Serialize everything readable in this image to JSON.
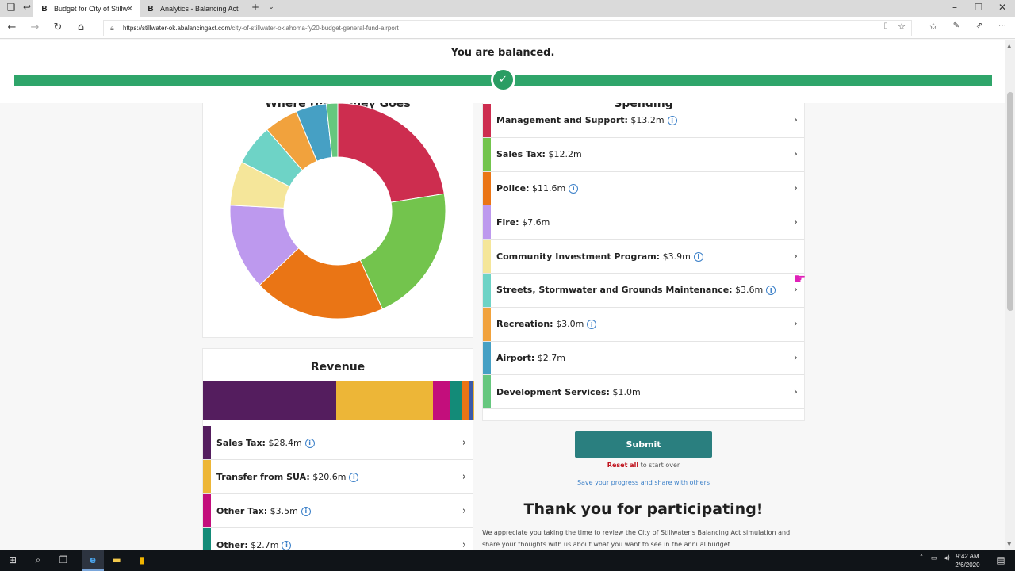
{
  "browser": {
    "tabs": [
      {
        "title": "Budget for City of Stillw",
        "favicon": "B"
      },
      {
        "title": "Analytics - Balancing Act",
        "favicon": "B"
      }
    ],
    "url_domain": "https://stillwater-ok.abalancingact.com",
    "url_path": "/city-of-stillwater-oklahoma-fy20-budget-general-fund-airport"
  },
  "status": {
    "text": "You are balanced.",
    "color": "#2fa56a"
  },
  "donut": {
    "title": "Where the Money Goes"
  },
  "spending": {
    "title": "Spending",
    "items": [
      {
        "name": "Management and Support:",
        "amount": "$13.2m",
        "value": 13.2,
        "color": "#cd2d4f",
        "info": true
      },
      {
        "name": "Sales Tax:",
        "amount": "$12.2m",
        "value": 12.2,
        "color": "#73c44d",
        "info": false
      },
      {
        "name": "Police:",
        "amount": "$11.6m",
        "value": 11.6,
        "color": "#ea7515",
        "info": true
      },
      {
        "name": "Fire:",
        "amount": "$7.6m",
        "value": 7.6,
        "color": "#bd99ee",
        "info": false
      },
      {
        "name": "Community Investment Program:",
        "amount": "$3.9m",
        "value": 3.9,
        "color": "#f5e69a",
        "info": true
      },
      {
        "name": "Streets, Stormwater and Grounds Maintenance:",
        "amount": "$3.6m",
        "value": 3.6,
        "color": "#6ed3c6",
        "info": true
      },
      {
        "name": "Recreation:",
        "amount": "$3.0m",
        "value": 3.0,
        "color": "#f1a23d",
        "info": true
      },
      {
        "name": "Airport:",
        "amount": "$2.7m",
        "value": 2.7,
        "color": "#46a0c4",
        "info": false
      },
      {
        "name": "Development Services:",
        "amount": "$1.0m",
        "value": 1.0,
        "color": "#66c77e",
        "info": false
      }
    ]
  },
  "revenue": {
    "title": "Revenue",
    "bar_segments": [
      {
        "color": "#541d5e",
        "value": 28.4
      },
      {
        "color": "#edb637",
        "value": 20.6
      },
      {
        "color": "#c30e7c",
        "value": 3.5
      },
      {
        "color": "#138b78",
        "value": 2.7
      },
      {
        "color": "#ea7515",
        "value": 1.5
      },
      {
        "color": "#3b5aa8",
        "value": 0.7
      },
      {
        "color": "#edb637",
        "value": 0.4
      }
    ],
    "items": [
      {
        "name": "Sales Tax:",
        "amount": "$28.4m",
        "color": "#541d5e",
        "info": true
      },
      {
        "name": "Transfer from SUA:",
        "amount": "$20.6m",
        "color": "#edb637",
        "info": true
      },
      {
        "name": "Other Tax:",
        "amount": "$3.5m",
        "color": "#c30e7c",
        "info": true
      },
      {
        "name": "Other:",
        "amount": "$2.7m",
        "color": "#138b78",
        "info": true
      }
    ]
  },
  "actions": {
    "submit": "Submit",
    "reset_link": "Reset all",
    "reset_rest": " to start over",
    "save": "Save your progress and share with others"
  },
  "thanks": {
    "title": "Thank you for participating!",
    "body": "We appreciate you taking the time to review the City of Stillwater's Balancing Act simulation and share your thoughts with us about what you want to see in the annual budget."
  },
  "taskbar": {
    "time": "9:42 AM",
    "date": "2/6/2020"
  }
}
